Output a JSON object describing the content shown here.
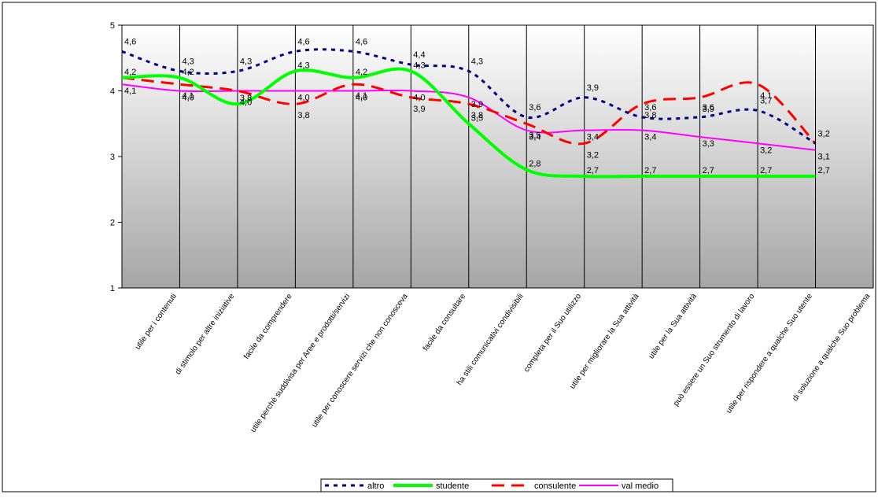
{
  "chart_data": {
    "type": "line",
    "title": "",
    "xlabel": "",
    "ylabel": "",
    "ylim": [
      1,
      5
    ],
    "yticks": [
      "1",
      "2",
      "3",
      "4",
      "5"
    ],
    "grid": "vertical",
    "legend_position": "bottom",
    "categories": [
      "utile per i contenuti",
      "di stimolo per altre iniziative",
      "facile da comprendere",
      "utile perchè suddivisa per Aree e prodotti/servizi",
      "utile per conoscere servizi che non conosceva",
      "facile da consultare",
      "ha stili comunicativi condivisibili",
      "completa per il Suo utilizzo",
      "utile per migliorare la Sua attività",
      "utile per la Sua attività",
      "può essere un Suo strumento di lavoro",
      "utile per rispondere a qualche Suo utente",
      "di soluzione a qualche Suo problema"
    ],
    "series": [
      {
        "name": "altro",
        "color": "#000080",
        "dash": "dotted",
        "values": [
          4.6,
          4.3,
          4.3,
          4.6,
          4.6,
          4.4,
          4.3,
          3.6,
          3.9,
          3.6,
          3.6,
          3.7,
          3.2
        ],
        "labels": [
          "4,6",
          "4,3",
          "4,3",
          "4,6",
          "4,6",
          "4,4",
          "4,3",
          "3,6",
          "3,9",
          "3,6",
          "3,6",
          "3,7",
          "3,2"
        ]
      },
      {
        "name": "studente",
        "color": "#00ff00",
        "dash": "solid",
        "values": [
          4.2,
          4.2,
          3.8,
          4.3,
          4.2,
          4.3,
          3.5,
          2.8,
          2.7,
          2.7,
          2.7,
          2.7,
          2.7
        ],
        "labels": [
          "4,2",
          "4,2",
          "3,8",
          "4,3",
          "4,2",
          "4,3",
          "3,5",
          "2,8",
          "2,7",
          "2,7",
          "2,7",
          "2,7",
          "2,7"
        ]
      },
      {
        "name": "consulente",
        "color": "#ff0000",
        "dash": "dashed",
        "values": [
          4.2,
          4.1,
          4.0,
          3.8,
          4.1,
          3.9,
          3.8,
          3.5,
          3.2,
          3.8,
          3.9,
          4.1,
          3.2
        ],
        "labels": [
          "",
          "4,1",
          "4,0",
          "3,8",
          "4,1",
          "3,9",
          "3,8",
          "3,5",
          "3,2",
          "3,8",
          "3,9",
          "4,1",
          ""
        ]
      },
      {
        "name": "val medio",
        "color": "#ff00ff",
        "dash": "solid",
        "values": [
          4.1,
          4.0,
          4.0,
          4.0,
          4.0,
          4.0,
          3.9,
          3.4,
          3.4,
          3.4,
          3.3,
          3.2,
          3.1
        ],
        "labels": [
          "4,1",
          "4,0",
          "",
          "4,0",
          "4,0",
          "4,0",
          "3,9",
          "3,4",
          "3,4",
          "3,4",
          "3,3",
          "3,2",
          "3,1"
        ]
      }
    ]
  }
}
